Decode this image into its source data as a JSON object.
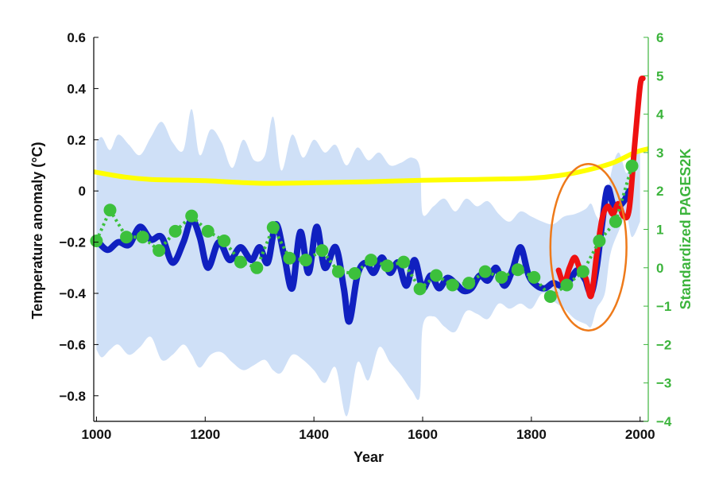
{
  "chart_data": {
    "type": "line",
    "xlabel": "Year",
    "ylabel": "Temperature anomaly (°C)",
    "y2label": "Standardized PAGES2K",
    "xlim": [
      995,
      2015
    ],
    "ylim": [
      -0.9,
      0.6
    ],
    "y2lim": [
      -4,
      6
    ],
    "x_ticks": [
      1000,
      1200,
      1400,
      1600,
      1800,
      2000
    ],
    "y_ticks": [
      0.6,
      0.4,
      0.2,
      0,
      -0.2,
      -0.4,
      -0.6,
      -0.8
    ],
    "y2_ticks": [
      6,
      5,
      4,
      3,
      2,
      1,
      0,
      -1,
      -2,
      -3,
      -4
    ],
    "y_tick_labels": [
      "0.6",
      "0.4",
      "0.2",
      "0",
      "−0.2",
      "−0.4",
      "−0.6",
      "−0.8"
    ],
    "y2_tick_labels": [
      "6",
      "5",
      "4",
      "3",
      "2",
      "1",
      "0",
      "−1",
      "−2",
      "−3",
      "−4"
    ],
    "x_tick_labels": [
      "1000",
      "1200",
      "1400",
      "1600",
      "1800",
      "2000"
    ],
    "grid": false,
    "colors": {
      "band": "#cfe0f7",
      "blue": "#1020c0",
      "red": "#ee1111",
      "yellow": "#ffff00",
      "green": "#3cc03c",
      "green_axis": "#3cb43c",
      "ellipse": "#ee7a1a"
    },
    "uncertainty_band": {
      "x": [
        1000,
        1010,
        1025,
        1040,
        1060,
        1080,
        1100,
        1120,
        1140,
        1160,
        1175,
        1190,
        1210,
        1230,
        1250,
        1270,
        1290,
        1310,
        1325,
        1340,
        1360,
        1380,
        1400,
        1420,
        1440,
        1460,
        1480,
        1500,
        1520,
        1540,
        1560,
        1580,
        1595,
        1600,
        1620,
        1640,
        1660,
        1680,
        1700,
        1720,
        1740,
        1760,
        1780,
        1800,
        1820,
        1840,
        1860,
        1880,
        1900,
        1910,
        1920,
        1935,
        1945,
        1960,
        1975,
        1985,
        2000
      ],
      "upper": [
        0.19,
        0.21,
        0.16,
        0.22,
        0.18,
        0.14,
        0.21,
        0.27,
        0.19,
        0.16,
        0.32,
        0.14,
        0.24,
        0.19,
        0.09,
        0.2,
        0.12,
        0.14,
        0.29,
        0.08,
        0.22,
        0.13,
        0.2,
        0.15,
        0.18,
        0.1,
        0.17,
        0.12,
        0.15,
        0.1,
        0.11,
        0.13,
        0.09,
        -0.09,
        -0.06,
        -0.03,
        -0.08,
        -0.03,
        -0.06,
        -0.04,
        -0.09,
        -0.12,
        -0.08,
        -0.1,
        -0.12,
        -0.13,
        -0.1,
        -0.09,
        -0.07,
        -0.05,
        -0.1,
        -0.13,
        0.05,
        0.15,
        0.07,
        0.14,
        0.16
      ],
      "lower": [
        -0.62,
        -0.65,
        -0.62,
        -0.6,
        -0.64,
        -0.61,
        -0.57,
        -0.66,
        -0.64,
        -0.6,
        -0.64,
        -0.69,
        -0.64,
        -0.63,
        -0.67,
        -0.7,
        -0.68,
        -0.66,
        -0.7,
        -0.71,
        -0.64,
        -0.66,
        -0.7,
        -0.75,
        -0.69,
        -0.88,
        -0.67,
        -0.74,
        -0.61,
        -0.67,
        -0.72,
        -0.78,
        -0.8,
        -0.53,
        -0.49,
        -0.53,
        -0.55,
        -0.47,
        -0.48,
        -0.5,
        -0.44,
        -0.46,
        -0.44,
        -0.46,
        -0.4,
        -0.43,
        -0.46,
        -0.5,
        -0.52,
        -0.53,
        -0.46,
        -0.4,
        -0.25,
        -0.16,
        -0.1,
        -0.18,
        -0.12
      ]
    },
    "series": [
      {
        "color": "#1020c0",
        "x": [
          1000,
          1020,
          1040,
          1060,
          1080,
          1100,
          1120,
          1140,
          1160,
          1175,
          1190,
          1205,
          1225,
          1245,
          1265,
          1285,
          1300,
          1315,
          1330,
          1345,
          1360,
          1375,
          1390,
          1405,
          1420,
          1440,
          1455,
          1465,
          1480,
          1495,
          1510,
          1525,
          1540,
          1555,
          1570,
          1585,
          1600,
          1615,
          1630,
          1645,
          1660,
          1675,
          1690,
          1705,
          1720,
          1735,
          1750,
          1765,
          1780,
          1795,
          1810,
          1825,
          1840,
          1855,
          1870,
          1885,
          1900
        ],
        "y": [
          -0.19,
          -0.23,
          -0.2,
          -0.21,
          -0.14,
          -0.19,
          -0.18,
          -0.28,
          -0.2,
          -0.11,
          -0.18,
          -0.3,
          -0.2,
          -0.27,
          -0.22,
          -0.27,
          -0.22,
          -0.28,
          -0.13,
          -0.25,
          -0.38,
          -0.16,
          -0.32,
          -0.14,
          -0.3,
          -0.22,
          -0.38,
          -0.51,
          -0.33,
          -0.28,
          -0.32,
          -0.26,
          -0.32,
          -0.28,
          -0.37,
          -0.27,
          -0.38,
          -0.33,
          -0.38,
          -0.34,
          -0.36,
          -0.39,
          -0.38,
          -0.33,
          -0.35,
          -0.3,
          -0.37,
          -0.31,
          -0.22,
          -0.33,
          -0.37,
          -0.38,
          -0.36,
          -0.37,
          -0.35,
          -0.31,
          -0.35
        ]
      },
      {
        "color": "#1020c0",
        "x": [
          1900,
          1910,
          1920,
          1930,
          1940,
          1950,
          1960,
          1970,
          1980
        ],
        "y": [
          -0.35,
          -0.4,
          -0.3,
          -0.13,
          0.01,
          -0.05,
          -0.06,
          -0.04,
          0.0
        ]
      },
      {
        "color": "#ee1111",
        "x": [
          1850,
          1860,
          1870,
          1880,
          1890,
          1900,
          1910,
          1920,
          1930,
          1940,
          1950,
          1960,
          1970,
          1980,
          1990,
          2000,
          2005
        ],
        "y": [
          -0.31,
          -0.36,
          -0.3,
          -0.26,
          -0.31,
          -0.34,
          -0.41,
          -0.25,
          -0.11,
          -0.06,
          -0.09,
          -0.05,
          -0.1,
          -0.07,
          0.18,
          0.41,
          0.44
        ]
      },
      {
        "color": "#ffff00",
        "x": [
          995,
          1050,
          1100,
          1200,
          1300,
          1400,
          1500,
          1600,
          1700,
          1800,
          1850,
          1900,
          1950,
          1990,
          2015
        ],
        "y": [
          0.075,
          0.055,
          0.045,
          0.04,
          0.03,
          0.032,
          0.036,
          0.042,
          0.045,
          0.05,
          0.06,
          0.08,
          0.11,
          0.15,
          0.165
        ]
      }
    ],
    "pages2k": {
      "color": "#3cc03c",
      "axis": "right",
      "x": [
        1000,
        1025,
        1055,
        1085,
        1115,
        1145,
        1175,
        1205,
        1235,
        1265,
        1295,
        1325,
        1355,
        1385,
        1415,
        1445,
        1475,
        1505,
        1535,
        1565,
        1595,
        1625,
        1655,
        1685,
        1715,
        1745,
        1775,
        1805,
        1835,
        1865,
        1895,
        1925,
        1955,
        1985
      ],
      "y": [
        0.7,
        1.5,
        0.8,
        0.8,
        0.45,
        0.95,
        1.35,
        0.95,
        0.7,
        0.15,
        0.0,
        1.05,
        0.25,
        0.2,
        0.45,
        -0.1,
        -0.15,
        0.2,
        0.05,
        0.15,
        -0.55,
        -0.2,
        -0.45,
        -0.4,
        -0.1,
        -0.25,
        -0.05,
        -0.25,
        -0.75,
        -0.45,
        -0.1,
        0.7,
        1.2,
        2.65
      ]
    },
    "annotation": {
      "type": "ellipse",
      "color": "#ee7a1a",
      "center_x": 1905,
      "center_y": -0.22,
      "radius_years": 70,
      "radius_anomaly": 0.325
    }
  }
}
